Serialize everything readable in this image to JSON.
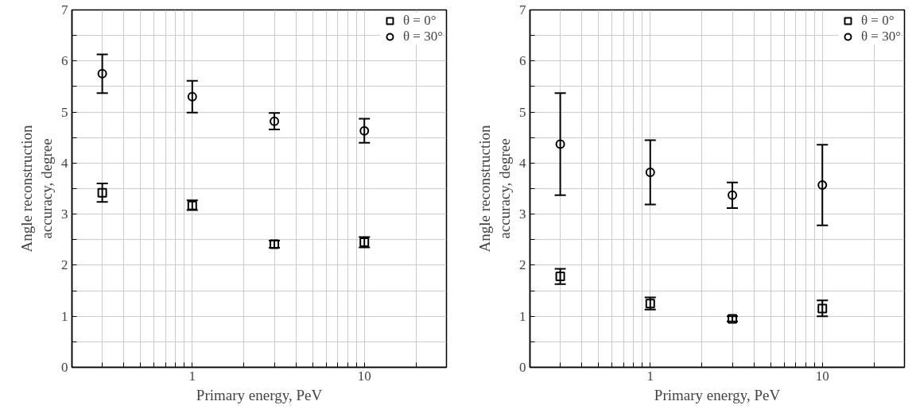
{
  "chart_data": [
    {
      "type": "scatter",
      "xlabel": "Primary energy, PeV",
      "ylabel": "Angle reconstruction\naccuracy, degree",
      "x": [
        0.3,
        1,
        3,
        10
      ],
      "log": "x",
      "xlim": [
        0.2,
        30
      ],
      "ylim": [
        0,
        7
      ],
      "grid": true,
      "legend": "top right",
      "xticks": [
        {
          "value": 0.3,
          "label": null
        },
        {
          "value": 0.4,
          "label": null
        },
        {
          "value": 0.5,
          "label": null
        },
        {
          "value": 0.6,
          "label": null
        },
        {
          "value": 0.7,
          "label": null
        },
        {
          "value": 0.8,
          "label": null
        },
        {
          "value": 0.9,
          "label": null
        },
        1,
        {
          "value": 2,
          "label": null
        },
        {
          "value": 3,
          "label": null
        },
        {
          "value": 4,
          "label": null
        },
        {
          "value": 5,
          "label": null
        },
        {
          "value": 6,
          "label": null
        },
        {
          "value": 7,
          "label": null
        },
        {
          "value": 8,
          "label": null
        },
        {
          "value": 9,
          "label": null
        },
        10,
        {
          "value": 20,
          "label": null
        }
      ],
      "yticks": [
        0,
        {
          "value": 0.5,
          "label": null
        },
        1,
        {
          "value": 1.5,
          "label": null
        },
        2,
        {
          "value": 2.5,
          "label": null
        },
        3,
        {
          "value": 3.5,
          "label": null
        },
        4,
        {
          "value": 4.5,
          "label": null
        },
        5,
        {
          "value": 5.5,
          "label": null
        },
        6,
        {
          "value": 6.5,
          "label": null
        },
        7
      ],
      "series": [
        {
          "name": "θ = 0°",
          "color": "#000000",
          "marker": "square",
          "values": [
            3.42,
            3.17,
            2.41,
            2.45
          ],
          "errors": [
            [
              3.24,
              3.6
            ],
            [
              3.08,
              3.27
            ],
            [
              2.34,
              2.48
            ],
            [
              2.35,
              2.55
            ]
          ]
        },
        {
          "name": "θ = 30°",
          "color": "#000000",
          "marker": "circle",
          "values": [
            5.75,
            5.3,
            4.82,
            4.63
          ],
          "errors": [
            [
              5.37,
              6.13
            ],
            [
              4.99,
              5.61
            ],
            [
              4.66,
              4.98
            ],
            [
              4.4,
              4.87
            ]
          ]
        }
      ]
    },
    {
      "type": "scatter",
      "xlabel": "Primary energy, PeV",
      "ylabel": "Angle reconstruction\naccuracy, degree",
      "x": [
        0.3,
        1,
        3,
        10
      ],
      "log": "x",
      "xlim": [
        0.2,
        30
      ],
      "ylim": [
        0,
        7
      ],
      "grid": true,
      "legend": "top right",
      "xticks": [
        {
          "value": 0.3,
          "label": null
        },
        {
          "value": 0.4,
          "label": null
        },
        {
          "value": 0.5,
          "label": null
        },
        {
          "value": 0.6,
          "label": null
        },
        {
          "value": 0.7,
          "label": null
        },
        {
          "value": 0.8,
          "label": null
        },
        {
          "value": 0.9,
          "label": null
        },
        1,
        {
          "value": 2,
          "label": null
        },
        {
          "value": 3,
          "label": null
        },
        {
          "value": 4,
          "label": null
        },
        {
          "value": 5,
          "label": null
        },
        {
          "value": 6,
          "label": null
        },
        {
          "value": 7,
          "label": null
        },
        {
          "value": 8,
          "label": null
        },
        {
          "value": 9,
          "label": null
        },
        10,
        {
          "value": 20,
          "label": null
        }
      ],
      "yticks": [
        0,
        {
          "value": 0.5,
          "label": null
        },
        1,
        {
          "value": 1.5,
          "label": null
        },
        2,
        {
          "value": 2.5,
          "label": null
        },
        3,
        {
          "value": 3.5,
          "label": null
        },
        4,
        {
          "value": 4.5,
          "label": null
        },
        5,
        {
          "value": 5.5,
          "label": null
        },
        6,
        {
          "value": 6.5,
          "label": null
        },
        7
      ],
      "series": [
        {
          "name": "θ = 0°",
          "color": "#000000",
          "marker": "square",
          "values": [
            1.78,
            1.25,
            0.95,
            1.15
          ],
          "errors": [
            [
              1.63,
              1.93
            ],
            [
              1.13,
              1.37
            ],
            [
              0.9,
              1.0
            ],
            [
              1.0,
              1.31
            ]
          ]
        },
        {
          "name": "θ = 30°",
          "color": "#000000",
          "marker": "circle",
          "values": [
            4.37,
            3.82,
            3.37,
            3.57
          ],
          "errors": [
            [
              3.37,
              5.37
            ],
            [
              3.19,
              4.45
            ],
            [
              3.12,
              3.62
            ],
            [
              2.78,
              4.36
            ]
          ]
        }
      ]
    }
  ]
}
